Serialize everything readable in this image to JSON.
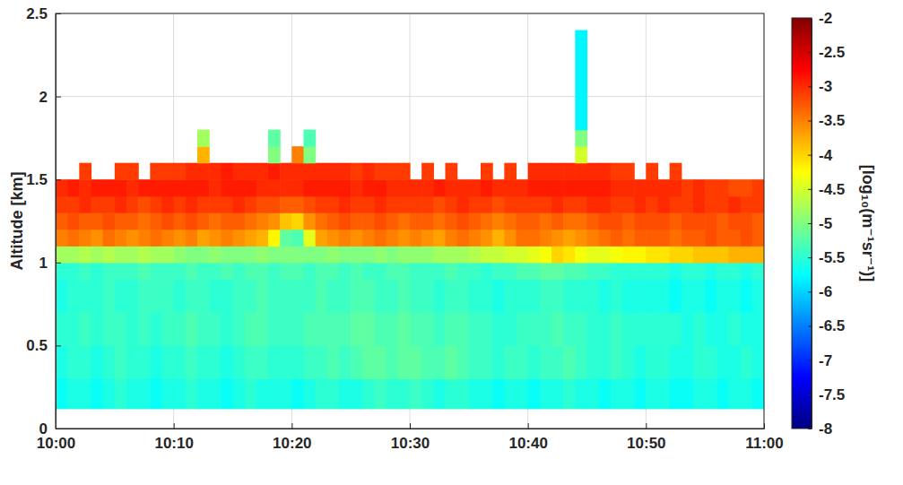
{
  "chart_data": {
    "type": "heatmap",
    "ylabel": "Altitude [km]",
    "xlim": [
      0,
      60
    ],
    "xticks": [
      {
        "value": 0,
        "label": "10:00"
      },
      {
        "value": 10,
        "label": "10:10"
      },
      {
        "value": 20,
        "label": "10:20"
      },
      {
        "value": 30,
        "label": "10:30"
      },
      {
        "value": 40,
        "label": "10:40"
      },
      {
        "value": 50,
        "label": "10:50"
      },
      {
        "value": 60,
        "label": "11:00"
      }
    ],
    "ylim": [
      0,
      2.5
    ],
    "yticks": [
      0,
      0.5,
      1,
      1.5,
      2,
      2.5
    ],
    "grid": true,
    "x_bins": [
      0,
      1,
      2,
      3,
      4,
      5,
      6,
      7,
      8,
      9,
      10,
      11,
      12,
      13,
      14,
      15,
      16,
      17,
      18,
      19,
      20,
      21,
      22,
      23,
      24,
      25,
      26,
      27,
      28,
      29,
      30,
      31,
      32,
      33,
      34,
      35,
      36,
      37,
      38,
      39,
      40,
      41,
      42,
      43,
      44,
      45,
      46,
      47,
      48,
      49,
      50,
      51,
      52,
      53,
      54,
      55,
      56,
      57,
      58,
      59,
      60
    ],
    "y_bins": [
      0.12,
      0.3,
      0.5,
      0.7,
      0.9,
      1.0,
      1.1,
      1.2,
      1.3,
      1.4,
      1.5,
      1.6,
      1.7,
      1.8,
      2.4
    ],
    "cells": [
      [
        -5.7,
        -5.6,
        -5.6,
        -5.7,
        -5.6,
        -5.5,
        -5.6,
        -5.6,
        -5.7,
        -5.6,
        -5.6,
        -5.5,
        -5.6,
        -5.6,
        -5.7,
        -5.6,
        -5.5,
        -5.6,
        -5.6,
        -5.6,
        -5.7,
        -5.6,
        -5.5,
        -5.5,
        -5.6,
        -5.6,
        -5.5,
        -5.4,
        -5.5,
        -5.5,
        -5.4,
        -5.5,
        -5.6,
        -5.5,
        -5.5,
        -5.6,
        -5.6,
        -5.7,
        -5.6,
        -5.6,
        -5.7,
        -5.6,
        -5.6,
        -5.5,
        -5.6,
        -5.6,
        -5.7,
        -5.6,
        -5.6,
        -5.7,
        -5.6,
        -5.6,
        -5.7,
        -5.7,
        -5.6,
        -5.6,
        -5.7,
        -5.6,
        -5.6,
        -5.7
      ],
      [
        -5.6,
        -5.5,
        -5.5,
        -5.6,
        -5.5,
        -5.4,
        -5.5,
        -5.5,
        -5.6,
        -5.5,
        -5.5,
        -5.4,
        -5.5,
        -5.5,
        -5.6,
        -5.5,
        -5.4,
        -5.4,
        -5.5,
        -5.5,
        -5.5,
        -5.4,
        -5.4,
        -5.3,
        -5.4,
        -5.3,
        -5.2,
        -5.2,
        -5.3,
        -5.2,
        -5.2,
        -5.3,
        -5.3,
        -5.2,
        -5.3,
        -5.4,
        -5.4,
        -5.5,
        -5.4,
        -5.4,
        -5.5,
        -5.4,
        -5.4,
        -5.3,
        -5.4,
        -5.5,
        -5.5,
        -5.4,
        -5.5,
        -5.6,
        -5.5,
        -5.5,
        -5.6,
        -5.6,
        -5.5,
        -5.5,
        -5.6,
        -5.6,
        -5.5,
        -5.6
      ],
      [
        -5.5,
        -5.5,
        -5.4,
        -5.5,
        -5.4,
        -5.4,
        -5.5,
        -5.4,
        -5.5,
        -5.4,
        -5.4,
        -5.3,
        -5.4,
        -5.4,
        -5.5,
        -5.4,
        -5.3,
        -5.3,
        -5.4,
        -5.4,
        -5.4,
        -5.3,
        -5.3,
        -5.3,
        -5.3,
        -5.2,
        -5.2,
        -5.3,
        -5.3,
        -5.2,
        -5.3,
        -5.3,
        -5.4,
        -5.3,
        -5.3,
        -5.4,
        -5.4,
        -5.5,
        -5.5,
        -5.4,
        -5.4,
        -5.4,
        -5.3,
        -5.4,
        -5.4,
        -5.5,
        -5.5,
        -5.4,
        -5.5,
        -5.5,
        -5.5,
        -5.5,
        -5.5,
        -5.6,
        -5.5,
        -5.6,
        -5.6,
        -5.5,
        -5.6,
        -5.6
      ],
      [
        -5.6,
        -5.5,
        -5.5,
        -5.5,
        -5.4,
        -5.5,
        -5.5,
        -5.4,
        -5.4,
        -5.4,
        -5.5,
        -5.4,
        -5.4,
        -5.5,
        -5.5,
        -5.4,
        -5.4,
        -5.3,
        -5.4,
        -5.4,
        -5.4,
        -5.4,
        -5.3,
        -5.4,
        -5.4,
        -5.3,
        -5.3,
        -5.4,
        -5.4,
        -5.3,
        -5.4,
        -5.4,
        -5.5,
        -5.4,
        -5.4,
        -5.5,
        -5.5,
        -5.6,
        -5.5,
        -5.5,
        -5.5,
        -5.4,
        -5.4,
        -5.5,
        -5.5,
        -5.5,
        -5.6,
        -5.5,
        -5.6,
        -5.6,
        -5.6,
        -5.6,
        -5.7,
        -5.6,
        -5.6,
        -5.7,
        -5.6,
        -5.6,
        -5.7,
        -5.6
      ],
      [
        -5.5,
        -5.5,
        -5.4,
        -5.5,
        -5.4,
        -5.4,
        -5.4,
        -5.3,
        -5.4,
        -5.4,
        -5.4,
        -5.3,
        -5.4,
        -5.4,
        -5.3,
        -5.4,
        -5.3,
        -5.3,
        -5.4,
        -5.3,
        -5.3,
        -5.4,
        -5.3,
        -5.3,
        -5.4,
        -5.3,
        -5.4,
        -5.4,
        -5.3,
        -5.3,
        -5.4,
        -5.4,
        -5.4,
        -5.3,
        -5.4,
        -5.4,
        -5.5,
        -5.4,
        -5.4,
        -5.3,
        -5.3,
        -5.2,
        -5.2,
        -5.3,
        -5.3,
        -5.4,
        -5.4,
        -5.5,
        -5.5,
        -5.5,
        -5.5,
        -5.5,
        -5.6,
        -5.5,
        -5.5,
        -5.6,
        -5.5,
        -5.5,
        -5.6,
        -5.5
      ],
      [
        -4.8,
        -4.8,
        -4.7,
        -4.8,
        -4.7,
        -4.8,
        -4.8,
        -4.7,
        -4.8,
        -4.8,
        -4.9,
        -5.0,
        -5.0,
        -4.9,
        -5.0,
        -5.0,
        -5.0,
        -4.9,
        -5.0,
        -5.0,
        -5.0,
        -5.0,
        -5.0,
        -4.9,
        -5.0,
        -5.0,
        -5.0,
        -4.9,
        -5.0,
        -4.9,
        -4.9,
        -4.9,
        -4.8,
        -4.8,
        -4.8,
        -4.7,
        -4.6,
        -4.6,
        -4.5,
        -4.5,
        -4.4,
        -4.3,
        -4.0,
        -4.1,
        -4.3,
        -4.4,
        -4.4,
        -4.3,
        -4.2,
        -4.2,
        -4.1,
        -4.1,
        -4.0,
        -4.0,
        -3.9,
        -3.9,
        -3.9,
        -3.8,
        -3.8,
        -3.8
      ],
      [
        -3.5,
        -3.4,
        -3.5,
        -3.6,
        -3.4,
        -3.5,
        -3.6,
        -3.5,
        -3.4,
        -3.5,
        -3.6,
        -3.5,
        -3.7,
        -3.6,
        -3.5,
        -3.6,
        -3.7,
        -3.8,
        -4.2,
        -5.2,
        -5.3,
        -4.4,
        -3.7,
        -3.6,
        -3.5,
        -3.6,
        -3.5,
        -3.4,
        -3.5,
        -3.6,
        -3.5,
        -3.6,
        -3.7,
        -3.5,
        -3.4,
        -3.5,
        -3.6,
        -3.8,
        -3.6,
        -3.4,
        -3.4,
        -3.5,
        -3.6,
        -3.7,
        -3.6,
        -3.5,
        -3.4,
        -3.3,
        -3.4,
        -3.3,
        -3.3,
        -3.3,
        -3.4,
        -3.3,
        -3.3,
        -3.2,
        -3.3,
        -3.3,
        -3.2,
        -3.3
      ],
      [
        -3.3,
        -3.2,
        -3.3,
        -3.3,
        -3.2,
        -3.3,
        -3.3,
        -3.4,
        -3.3,
        -3.2,
        -3.3,
        -3.2,
        -3.3,
        -3.4,
        -3.3,
        -3.3,
        -3.4,
        -3.5,
        -3.6,
        -3.9,
        -4.0,
        -3.6,
        -3.4,
        -3.3,
        -3.2,
        -3.3,
        -3.3,
        -3.2,
        -3.3,
        -3.4,
        -3.3,
        -3.3,
        -3.4,
        -3.3,
        -3.2,
        -3.3,
        -3.4,
        -3.5,
        -3.4,
        -3.3,
        -3.3,
        -3.4,
        -3.3,
        -3.4,
        -3.4,
        -3.3,
        -3.2,
        -3.2,
        -3.3,
        -3.2,
        -3.2,
        -3.2,
        -3.3,
        -3.2,
        -3.2,
        -3.2,
        -3.3,
        -3.2,
        -3.2,
        -3.3
      ],
      [
        -3.1,
        -3.1,
        -3.0,
        -3.1,
        -3.1,
        -3.0,
        -3.1,
        -3.2,
        -3.1,
        -3.0,
        -3.1,
        -3.0,
        -3.1,
        -3.1,
        -3.1,
        -3.0,
        -3.1,
        -3.2,
        -3.2,
        -3.3,
        -3.3,
        -3.2,
        -3.1,
        -3.1,
        -3.0,
        -3.1,
        -3.1,
        -3.0,
        -3.1,
        -3.1,
        -3.1,
        -3.1,
        -3.2,
        -3.1,
        -3.0,
        -3.1,
        -3.1,
        -3.2,
        -3.1,
        -3.1,
        -3.1,
        -3.1,
        -3.0,
        -3.1,
        -3.1,
        -3.0,
        -3.0,
        -3.1,
        -3.1,
        -3.0,
        -3.1,
        -3.0,
        -3.1,
        -3.1,
        -3.0,
        -3.1,
        -3.1,
        -3.0,
        -3.1,
        -3.1
      ],
      [
        -3.0,
        -2.9,
        -3.0,
        -2.9,
        -2.9,
        -2.9,
        -3.0,
        -2.9,
        -2.9,
        -2.9,
        -2.9,
        -2.9,
        -2.9,
        -3.0,
        -2.9,
        -2.9,
        -2.9,
        -3.0,
        -3.0,
        -3.0,
        -3.0,
        -2.9,
        -2.9,
        -2.9,
        -2.9,
        -3.0,
        -2.9,
        -2.9,
        -3.0,
        -3.0,
        -3.0,
        -3.0,
        -2.9,
        -3.0,
        -3.0,
        -3.0,
        -2.9,
        -3.0,
        -3.0,
        -3.0,
        -2.9,
        -2.9,
        -2.9,
        -2.9,
        -2.9,
        -2.9,
        -2.9,
        -3.0,
        -3.0,
        -3.0,
        -3.0,
        -3.0,
        -3.0,
        -3.1,
        -3.0,
        -3.1,
        -3.1,
        -3.2,
        -3.2,
        -3.1
      ],
      [
        null,
        null,
        -3.1,
        null,
        null,
        -3.1,
        -3.1,
        null,
        -3.1,
        -3.1,
        -3.1,
        -3.0,
        -3.0,
        -3.0,
        -2.9,
        -3.0,
        -3.0,
        -3.0,
        -2.9,
        -3.0,
        -3.0,
        -3.0,
        -3.0,
        -3.0,
        -3.0,
        -3.1,
        -3.0,
        -3.1,
        -3.1,
        -3.1,
        null,
        -3.1,
        null,
        -3.1,
        null,
        null,
        -3.1,
        null,
        -3.1,
        null,
        -3.0,
        -3.0,
        -3.0,
        -3.0,
        -3.0,
        -3.0,
        -3.0,
        -3.1,
        -3.1,
        null,
        -3.1,
        null,
        -3.1,
        null,
        null,
        null,
        null,
        null,
        null,
        null
      ],
      [
        null,
        null,
        null,
        null,
        null,
        null,
        null,
        null,
        null,
        null,
        null,
        null,
        -3.8,
        null,
        null,
        null,
        null,
        null,
        -5.0,
        null,
        -3.5,
        -5.0,
        null,
        null,
        null,
        null,
        null,
        null,
        null,
        null,
        null,
        null,
        null,
        null,
        null,
        null,
        null,
        null,
        null,
        null,
        null,
        null,
        null,
        null,
        -4.5,
        null,
        null,
        null,
        null,
        null,
        null,
        null,
        null,
        null,
        null,
        null,
        null,
        null,
        null,
        null
      ],
      [
        null,
        null,
        null,
        null,
        null,
        null,
        null,
        null,
        null,
        null,
        null,
        null,
        -4.8,
        null,
        null,
        null,
        null,
        null,
        -5.2,
        null,
        null,
        -5.3,
        null,
        null,
        null,
        null,
        null,
        null,
        null,
        null,
        null,
        null,
        null,
        null,
        null,
        null,
        null,
        null,
        null,
        null,
        null,
        null,
        null,
        null,
        -5.0,
        null,
        null,
        null,
        null,
        null,
        null,
        null,
        null,
        null,
        null,
        null,
        null,
        null,
        null,
        null
      ],
      [
        null,
        null,
        null,
        null,
        null,
        null,
        null,
        null,
        null,
        null,
        null,
        null,
        null,
        null,
        null,
        null,
        null,
        null,
        null,
        null,
        null,
        null,
        null,
        null,
        null,
        null,
        null,
        null,
        null,
        null,
        null,
        null,
        null,
        null,
        null,
        null,
        null,
        null,
        null,
        null,
        null,
        null,
        null,
        null,
        -5.8,
        null,
        null,
        null,
        null,
        null,
        null,
        null,
        null,
        null,
        null,
        null,
        null,
        null,
        null,
        null
      ]
    ],
    "colorbar": {
      "range": [
        -8,
        -2
      ],
      "ticks": [
        -8,
        -7.5,
        -7,
        -6.5,
        -6,
        -5.5,
        -5,
        -4.5,
        -4,
        -3.5,
        -3,
        -2.5,
        -2
      ],
      "label": "[log₁₀(m⁻¹sr⁻¹)]"
    }
  }
}
